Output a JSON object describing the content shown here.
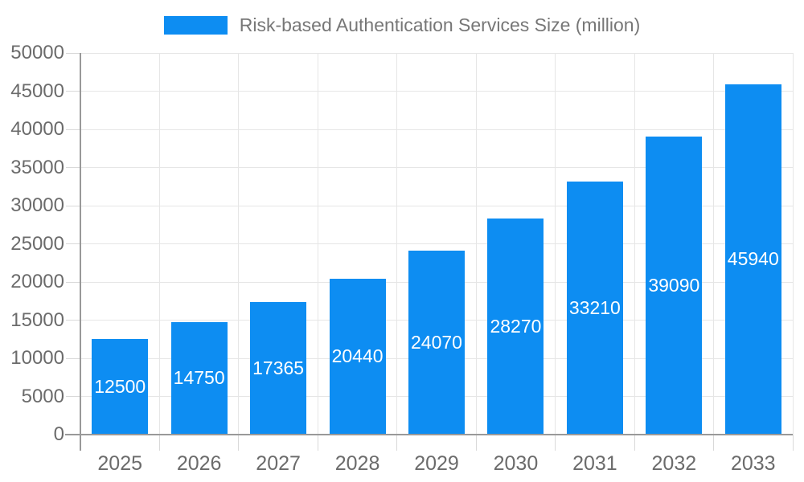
{
  "page": {
    "background": "#ffffff"
  },
  "legend": {
    "label": "Risk-based Authentication Services Size (million)",
    "swatch_color": "#0d8df2",
    "position": "top-center"
  },
  "chart_data": {
    "type": "bar",
    "title": "Risk-based Authentication Services Size (million)",
    "series_name": "Risk-based Authentication Services Size (million)",
    "categories": [
      "2025",
      "2026",
      "2027",
      "2028",
      "2029",
      "2030",
      "2031",
      "2032",
      "2033"
    ],
    "values": [
      12500,
      14750,
      17365,
      20440,
      24070,
      28270,
      33210,
      39090,
      45940
    ],
    "xlabel": "",
    "ylabel": "",
    "ylim": [
      0,
      50000
    ],
    "ytick_step": 5000,
    "yticks": [
      0,
      5000,
      10000,
      15000,
      20000,
      25000,
      30000,
      35000,
      40000,
      45000,
      50000
    ],
    "grid": true,
    "gridlines": "horizontal-and-vertical-boundaries",
    "legend_position": "top-center",
    "value_label_position": "inside-center",
    "colors": {
      "bar": "#0d8df2",
      "value_label": "#ffffff",
      "axis_line": "#999999",
      "gridline": "#e6e6e6",
      "tick_mark": "#d9d9d9",
      "tick_label_text": "#6b6b6b",
      "legend_text": "#777777",
      "background": "#ffffff"
    }
  }
}
